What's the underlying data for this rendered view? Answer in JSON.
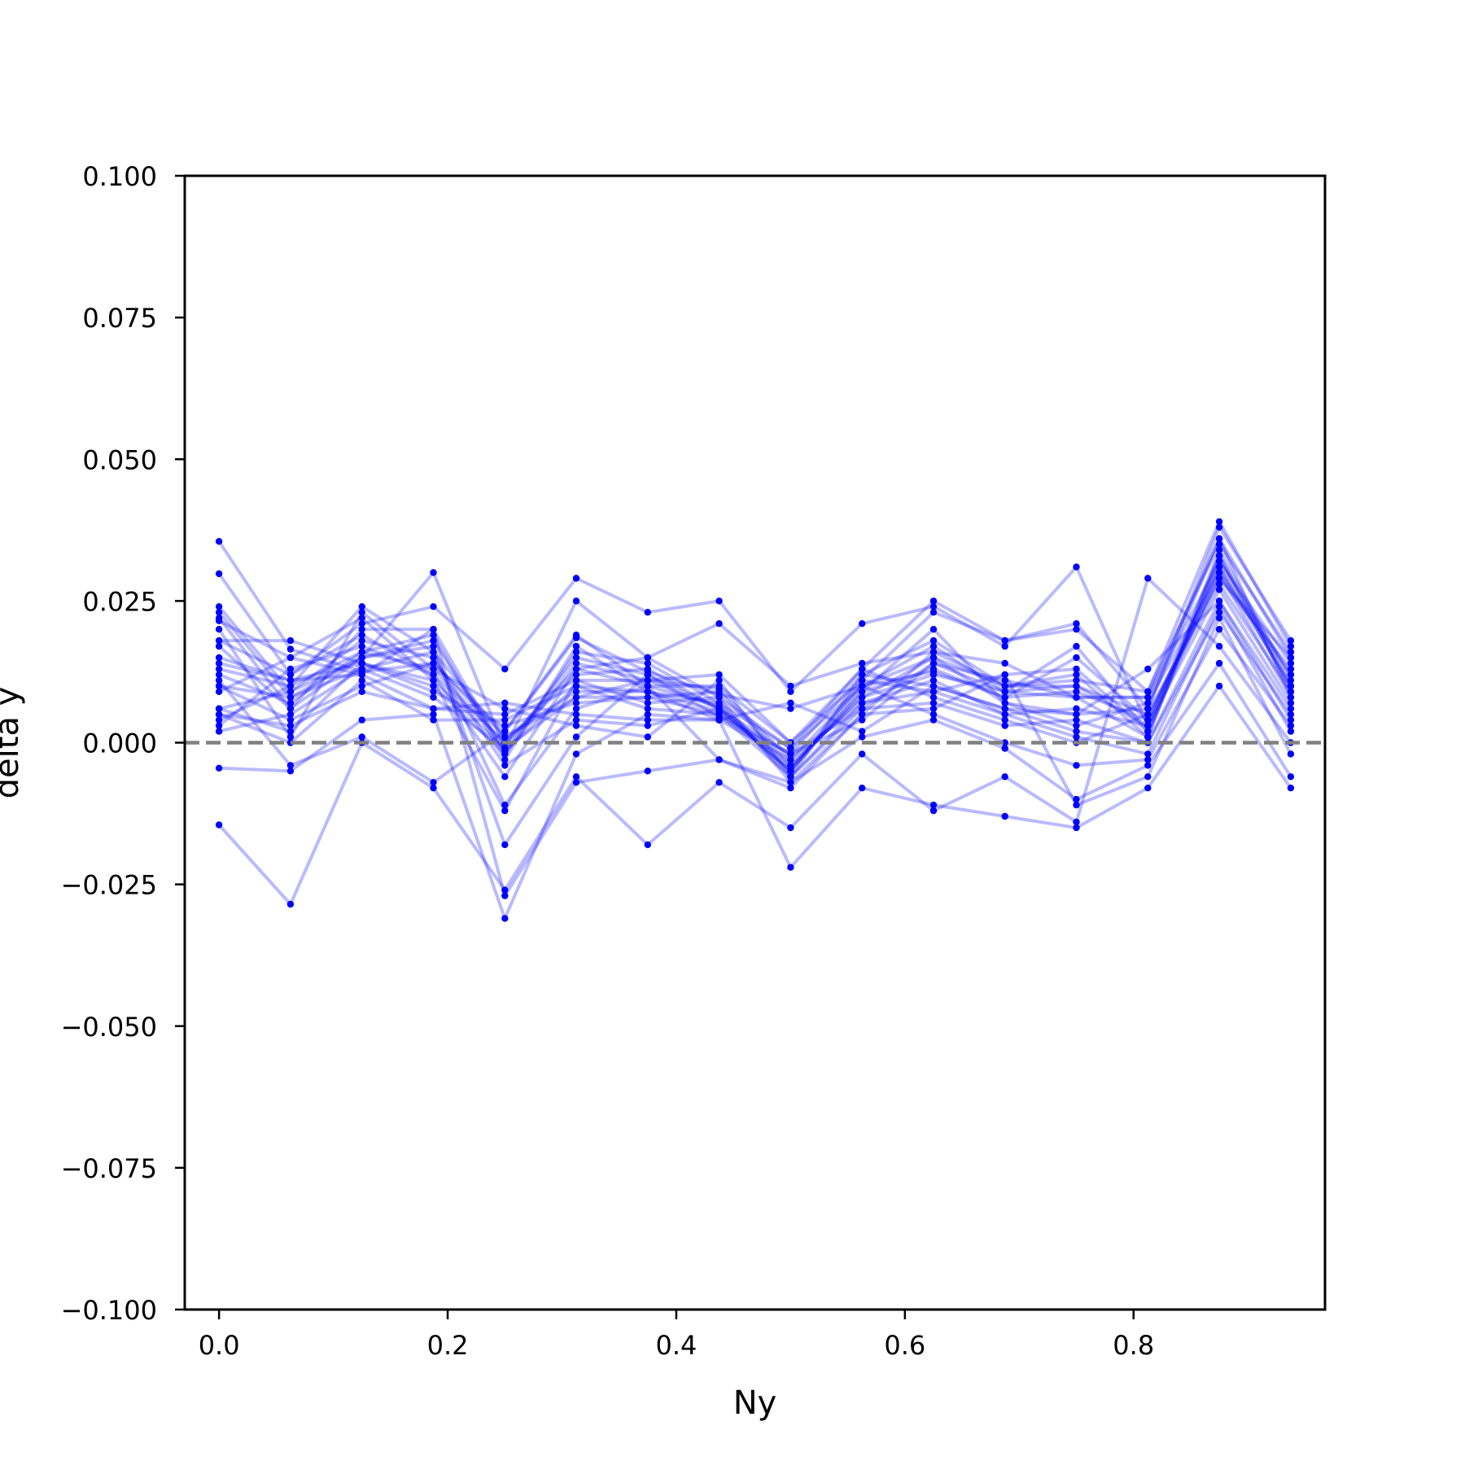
{
  "chart_data": {
    "type": "line",
    "title": "",
    "xlabel": "Ny",
    "ylabel": "delta y",
    "xlim": [
      -0.03,
      0.9675
    ],
    "ylim": [
      -0.1,
      0.1
    ],
    "xticks": [
      0.0,
      0.2,
      0.4,
      0.6,
      0.8
    ],
    "xtick_labels": [
      "0.0",
      "0.2",
      "0.4",
      "0.6",
      "0.8"
    ],
    "yticks": [
      -0.1,
      -0.075,
      -0.05,
      -0.025,
      0.0,
      0.025,
      0.05,
      0.075,
      0.1
    ],
    "ytick_labels": [
      "−0.100",
      "−0.075",
      "−0.050",
      "−0.025",
      "0.000",
      "0.025",
      "0.050",
      "0.075",
      "0.100"
    ],
    "grid": false,
    "reference_line": {
      "y": 0.0,
      "style": "dashed",
      "color": "#808080"
    },
    "colors": {
      "series_line": "#0000ff",
      "series_point": "#0000ff",
      "reference": "#808080"
    },
    "x": [
      0.0,
      0.0625,
      0.125,
      0.1875,
      0.25,
      0.3125,
      0.375,
      0.4375,
      0.5,
      0.5625,
      0.625,
      0.6875,
      0.75,
      0.8125,
      0.875,
      0.9375
    ],
    "series": [
      {
        "values": [
          0.0355,
          0.0165,
          0.0125,
          0.014,
          0.002,
          0.0185,
          0.0125,
          0.0085,
          0.006,
          0.01,
          0.0125,
          0.008,
          0.015,
          0.004,
          0.029,
          0.015
        ]
      },
      {
        "values": [
          0.0298,
          0.012,
          0.019,
          0.012,
          -0.006,
          0.013,
          0.01,
          0.0065,
          -0.004,
          0.008,
          0.015,
          0.01,
          0.01,
          0.003,
          0.033,
          0.01
        ]
      },
      {
        "values": [
          0.024,
          0.009,
          0.015,
          0.018,
          -0.0015,
          0.01,
          0.009,
          0.0055,
          -0.005,
          0.009,
          0.02,
          0.007,
          0.005,
          0.006,
          0.036,
          0.008
        ]
      },
      {
        "values": [
          0.023,
          0.008,
          0.013,
          0.016,
          0.001,
          0.008,
          0.011,
          0.0095,
          -0.003,
          0.01,
          0.017,
          0.009,
          0.017,
          0.002,
          0.03,
          0.012
        ]
      },
      {
        "values": [
          0.0215,
          0.015,
          0.022,
          0.011,
          -0.001,
          0.015,
          0.012,
          0.0045,
          -0.002,
          0.012,
          0.01,
          0.006,
          0.002,
          0.0,
          0.025,
          0.006
        ]
      },
      {
        "values": [
          0.018,
          0.018,
          0.014,
          0.009,
          0.003,
          0.007,
          0.008,
          0.005,
          -0.006,
          0.006,
          0.014,
          0.011,
          0.008,
          0.008,
          0.032,
          0.014
        ]
      },
      {
        "values": [
          0.017,
          0.006,
          0.02,
          0.02,
          -0.002,
          0.016,
          0.014,
          0.007,
          -0.001,
          0.013,
          0.008,
          0.004,
          0.0,
          0.005,
          0.028,
          0.009
        ]
      },
      {
        "values": [
          0.015,
          0.011,
          0.012,
          0.006,
          0.005,
          0.011,
          0.007,
          0.008,
          -0.007,
          0.005,
          0.016,
          0.01,
          0.012,
          0.001,
          0.034,
          0.011
        ]
      },
      {
        "values": [
          0.013,
          0.01,
          0.024,
          0.016,
          -0.011,
          0.006,
          0.01,
          0.01,
          0.0,
          0.011,
          0.023,
          0.018,
          0.021,
          0.006,
          0.038,
          0.018
        ]
      },
      {
        "values": [
          0.012,
          0.007,
          0.016,
          0.013,
          0.0,
          0.012,
          0.013,
          0.006,
          -0.0045,
          0.009,
          0.013,
          0.008,
          0.009,
          0.004,
          0.031,
          0.01
        ]
      },
      {
        "values": [
          0.01,
          0.004,
          0.01,
          0.014,
          0.001,
          0.009,
          0.009,
          0.004,
          -0.003,
          0.007,
          0.011,
          0.005,
          0.006,
          0.003,
          0.027,
          0.007
        ]
      },
      {
        "values": [
          0.006,
          0.002,
          0.014,
          0.01,
          -0.002,
          0.014,
          0.011,
          0.006,
          -0.005,
          0.011,
          0.009,
          0.012,
          0.013,
          0.002,
          0.032,
          0.012
        ]
      },
      {
        "values": [
          0.005,
          0.0,
          0.011,
          0.004,
          0.004,
          0.01,
          0.006,
          0.005,
          -0.002,
          0.006,
          0.007,
          0.003,
          0.004,
          0.0,
          0.023,
          0.005
        ]
      },
      {
        "values": [
          0.004,
          0.01,
          0.016,
          0.019,
          -0.003,
          0.017,
          0.009,
          0.007,
          -0.006,
          0.012,
          0.018,
          0.01,
          0.011,
          0.009,
          0.035,
          0.016
        ]
      },
      {
        "values": [
          0.003,
          0.013,
          0.017,
          0.012,
          0.0,
          0.013,
          0.015,
          0.008,
          -0.001,
          0.01,
          0.015,
          0.007,
          0.003,
          0.007,
          0.03,
          0.008
        ]
      },
      {
        "values": [
          0.002,
          0.005,
          0.013,
          0.008,
          -0.001,
          0.008,
          0.008,
          0.009,
          -0.004,
          0.008,
          0.012,
          0.009,
          0.01,
          0.005,
          0.029,
          0.013
        ]
      },
      {
        "values": [
          0.006,
          0.009,
          0.018,
          0.015,
          -0.004,
          0.004,
          0.003,
          0.006,
          -0.005,
          0.01,
          0.005,
          0.0,
          -0.004,
          -0.003,
          0.02,
          0.003
        ]
      },
      {
        "values": [
          0.01,
          0.008,
          0.015,
          0.017,
          -0.018,
          0.001,
          0.012,
          0.006,
          -0.002,
          0.004,
          0.014,
          0.009,
          0.008,
          0.001,
          0.033,
          0.009
        ]
      },
      {
        "values": [
          0.014,
          0.011,
          0.014,
          0.011,
          -0.012,
          0.011,
          0.011,
          0.012,
          0.0,
          0.013,
          0.025,
          0.018,
          0.02,
          0.009,
          0.039,
          0.017
        ]
      },
      {
        "values": [
          0.018,
          0.012,
          0.021,
          0.024,
          0.013,
          0.029,
          0.023,
          0.025,
          0.009,
          0.021,
          0.024,
          0.017,
          0.031,
          0.003,
          0.031,
          0.01
        ]
      },
      {
        "values": [
          0.022,
          0.006,
          0.015,
          0.03,
          -0.001,
          0.025,
          0.015,
          0.021,
          0.01,
          0.014,
          0.016,
          0.014,
          0.008,
          0.008,
          0.036,
          0.015
        ]
      },
      {
        "values": [
          0.009,
          0.015,
          0.012,
          0.02,
          -0.027,
          -0.007,
          -0.005,
          -0.003,
          -0.007,
          0.001,
          0.004,
          -0.001,
          -0.01,
          -0.004,
          0.014,
          -0.006
        ]
      },
      {
        "values": [
          -0.0045,
          -0.005,
          0.004,
          0.005,
          -0.031,
          -0.002,
          0.005,
          0.004,
          -0.022,
          -0.008,
          -0.011,
          -0.013,
          -0.015,
          -0.008,
          0.01,
          -0.008
        ]
      },
      {
        "values": [
          -0.0145,
          -0.0285,
          0.0,
          -0.008,
          -0.026,
          -0.006,
          -0.018,
          -0.007,
          -0.015,
          -0.002,
          -0.012,
          -0.006,
          -0.014,
          0.029,
          0.017,
          0.0
        ]
      },
      {
        "values": [
          0.005,
          0.003,
          0.009,
          0.006,
          0.007,
          0.005,
          0.004,
          0.004,
          0.007,
          0.002,
          0.01,
          0.006,
          0.005,
          0.013,
          0.025,
          0.004
        ]
      },
      {
        "values": [
          0.011,
          -0.004,
          0.001,
          -0.007,
          0.002,
          0.019,
          0.01,
          -0.003,
          -0.008,
          0.005,
          0.006,
          0.012,
          -0.011,
          -0.006,
          0.022,
          -0.002
        ]
      },
      {
        "values": [
          0.02,
          0.001,
          0.023,
          0.013,
          0.006,
          0.003,
          0.001,
          0.011,
          -0.006,
          0.007,
          0.009,
          0.005,
          0.001,
          -0.002,
          0.024,
          0.002
        ]
      }
    ]
  }
}
